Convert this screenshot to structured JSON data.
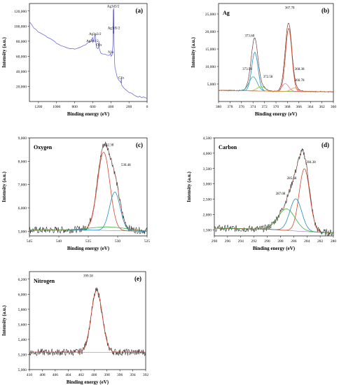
{
  "chart_data": [
    {
      "type": "line",
      "panel_label": "(a)",
      "xlabel": "Binding energy (eV)",
      "ylabel": "Intensity (a.u.)",
      "xlim": [
        1300,
        0
      ],
      "ylim": [
        0,
        130000
      ],
      "xticks": [
        1200,
        1000,
        800,
        600,
        400,
        200,
        0
      ],
      "yticks": [
        {
          "v": 20000,
          "l": "20,000"
        },
        {
          "v": 40000,
          "l": "40,000"
        },
        {
          "v": 60000,
          "l": "60,000"
        },
        {
          "v": 80000,
          "l": "80,000"
        },
        {
          "v": 100000,
          "l": "100,000"
        },
        {
          "v": 120000,
          "l": "120,000"
        }
      ],
      "annotations": [
        {
          "text": "Ag3p1/2",
          "x": 605,
          "y": 79000
        },
        {
          "text": "Ag3p3/2",
          "x": 575,
          "y": 88000
        },
        {
          "text": "O1s",
          "x": 532,
          "y": 74000
        },
        {
          "text": "Ag3d3/2",
          "x": 374,
          "y": 125000
        },
        {
          "text": "Ag3d5/2",
          "x": 368,
          "y": 96000
        },
        {
          "text": "N1s",
          "x": 400,
          "y": 64000
        },
        {
          "text": "C1s",
          "x": 285,
          "y": 30000
        }
      ],
      "series": [
        {
          "color": "#5b5bd6",
          "points": [
            [
              1300,
              105000
            ],
            [
              1290,
              104500
            ],
            [
              1270,
              101000
            ],
            [
              1250,
              97000
            ],
            [
              1230,
              96000
            ],
            [
              1220,
              94500
            ],
            [
              1200,
              92000
            ],
            [
              1180,
              91000
            ],
            [
              1150,
              89000
            ],
            [
              1120,
              87000
            ],
            [
              1100,
              85000
            ],
            [
              1080,
              84000
            ],
            [
              1050,
              82000
            ],
            [
              1020,
              79500
            ],
            [
              1000,
              77000
            ],
            [
              980,
              76000
            ],
            [
              950,
              74000
            ],
            [
              920,
              73000
            ],
            [
              900,
              72000
            ],
            [
              880,
              71000
            ],
            [
              850,
              70000
            ],
            [
              820,
              70500
            ],
            [
              800,
              69500
            ],
            [
              780,
              70000
            ],
            [
              760,
              71000
            ],
            [
              740,
              72000
            ],
            [
              720,
              73000
            ],
            [
              700,
              74500
            ],
            [
              680,
              75000
            ],
            [
              660,
              77500
            ],
            [
              640,
              79000
            ],
            [
              620,
              80000
            ],
            [
              610,
              83000
            ],
            [
              603,
              85000
            ],
            [
              598,
              80000
            ],
            [
              585,
              83000
            ],
            [
              575,
              89000
            ],
            [
              570,
              84000
            ],
            [
              560,
              72000
            ],
            [
              545,
              70000
            ],
            [
              535,
              72000
            ],
            [
              532,
              80000
            ],
            [
              528,
              70000
            ],
            [
              510,
              64000
            ],
            [
              490,
              63000
            ],
            [
              470,
              63000
            ],
            [
              450,
              62000
            ],
            [
              430,
              61000
            ],
            [
              410,
              62000
            ],
            [
              402,
              64000
            ],
            [
              398,
              60000
            ],
            [
              385,
              62000
            ],
            [
              378,
              75000
            ],
            [
              374,
              122000
            ],
            [
              371,
              90000
            ],
            [
              368,
              124000
            ],
            [
              365,
              78000
            ],
            [
              360,
              55000
            ],
            [
              355,
              45000
            ],
            [
              345,
              40000
            ],
            [
              330,
              32000
            ],
            [
              310,
              28000
            ],
            [
              295,
              26000
            ],
            [
              288,
              25000
            ],
            [
              285,
              32000
            ],
            [
              282,
              22000
            ],
            [
              270,
              20000
            ],
            [
              250,
              17000
            ],
            [
              230,
              15000
            ],
            [
              200,
              12000
            ],
            [
              170,
              11000
            ],
            [
              150,
              9000
            ],
            [
              120,
              7000
            ],
            [
              100,
              6000
            ],
            [
              80,
              7000
            ],
            [
              60,
              5000
            ],
            [
              40,
              6000
            ],
            [
              20,
              5000
            ],
            [
              0,
              4000
            ]
          ]
        }
      ]
    },
    {
      "type": "line",
      "panel_label": "(b)",
      "element_label": "Ag",
      "xlabel": "Binding energy (eV)",
      "ylabel": "Intensity (a.u.)",
      "xlim": [
        380,
        360
      ],
      "ylim": [
        0,
        28000
      ],
      "xticks": [
        380,
        378,
        376,
        374,
        372,
        370,
        368,
        366,
        364,
        362,
        360
      ],
      "yticks": [
        {
          "v": 5000,
          "l": "5,000"
        },
        {
          "v": 10000,
          "l": "10,000"
        },
        {
          "v": 15000,
          "l": "15,000"
        },
        {
          "v": 20000,
          "l": "20,000"
        },
        {
          "v": 25000,
          "l": "25,000"
        }
      ],
      "baseline": [
        [
          380,
          3200
        ],
        [
          372,
          3000
        ],
        [
          370,
          2900
        ],
        [
          360,
          2800
        ]
      ],
      "peaks": [
        {
          "name": "373.68",
          "center": 373.68,
          "amp": 11000,
          "sigma": 0.55,
          "color": "#1f8fc4"
        },
        {
          "name": "373.98",
          "center": 373.98,
          "amp": 4000,
          "sigma": 0.7,
          "color": "#2aa8a0"
        },
        {
          "name": "372.58",
          "center": 372.58,
          "amp": 1200,
          "sigma": 0.7,
          "color": "#8fbf3a"
        },
        {
          "name": "367.78",
          "center": 367.78,
          "amp": 18000,
          "sigma": 0.55,
          "color": "#d44a2a"
        },
        {
          "name": "368.38",
          "center": 368.38,
          "amp": 2200,
          "sigma": 0.6,
          "color": "#e07aa0"
        },
        {
          "name": "366.78",
          "center": 366.78,
          "amp": 1000,
          "sigma": 0.6,
          "color": "#e89a3a"
        }
      ],
      "annotations": [
        {
          "text": "367.78",
          "x": 367.6,
          "y": 26500
        },
        {
          "text": "373.68",
          "x": 374.6,
          "y": 18500
        },
        {
          "text": "373.98",
          "x": 375.0,
          "y": 9000
        },
        {
          "text": "372.58",
          "x": 371.4,
          "y": 6800
        },
        {
          "text": "368.38",
          "x": 365.9,
          "y": 9000
        },
        {
          "text": "366.78",
          "x": 365.9,
          "y": 5800
        }
      ]
    },
    {
      "type": "line",
      "panel_label": "(c)",
      "element_label": "Oxygen",
      "xlabel": "Binding energy (eV)",
      "ylabel": "Intensity (a.u.)",
      "xlim": [
        545,
        525
      ],
      "ylim": [
        4800,
        9000
      ],
      "xticks": [
        545,
        540,
        535,
        530,
        525
      ],
      "yticks": [
        {
          "v": 5000,
          "l": "5,000"
        },
        {
          "v": 6000,
          "l": "6,000"
        },
        {
          "v": 7000,
          "l": "7,000"
        },
        {
          "v": 8000,
          "l": "8,000"
        },
        {
          "v": 9000,
          "l": "9,000"
        }
      ],
      "baseline": [
        [
          545,
          5050
        ],
        [
          535,
          5050
        ],
        [
          525,
          5000
        ]
      ],
      "peaks": [
        {
          "name": "532.38",
          "center": 532.38,
          "amp": 3350,
          "sigma": 1.05,
          "color": "#d44a2a"
        },
        {
          "name": "530.48",
          "center": 530.48,
          "amp": 1650,
          "sigma": 0.9,
          "color": "#1f8fc4"
        },
        {
          "name": "broad",
          "center": 531.5,
          "amp": 150,
          "sigma": 3.0,
          "color": "#3cb043"
        }
      ],
      "annotations": [
        {
          "text": "532.38",
          "x": 531.5,
          "y": 8650
        },
        {
          "text": "530.48",
          "x": 528.6,
          "y": 7800
        }
      ]
    },
    {
      "type": "line",
      "panel_label": "(d)",
      "element_label": "Carbon",
      "xlabel": "Binding energy (eV)",
      "ylabel": "Intensity (a.u.)",
      "xlim": [
        298,
        280
      ],
      "ylim": [
        1300,
        4500
      ],
      "xticks": [
        298,
        296,
        294,
        292,
        290,
        288,
        286,
        284,
        282,
        280
      ],
      "yticks": [
        {
          "v": 1500,
          "l": "1,500"
        },
        {
          "v": 2000,
          "l": "2,000"
        },
        {
          "v": 2500,
          "l": "2,500"
        },
        {
          "v": 3000,
          "l": "3,000"
        },
        {
          "v": 3500,
          "l": "3,500"
        },
        {
          "v": 4000,
          "l": "4,000"
        },
        {
          "v": 4500,
          "l": "4,500"
        }
      ],
      "baseline": [
        [
          298,
          1550
        ],
        [
          290,
          1520
        ],
        [
          285,
          1450
        ],
        [
          280,
          1400
        ]
      ],
      "peaks": [
        {
          "name": "284.38",
          "center": 284.38,
          "amp": 2050,
          "sigma": 0.8,
          "color": "#d44a2a"
        },
        {
          "name": "285.68",
          "center": 285.68,
          "amp": 1050,
          "sigma": 0.9,
          "color": "#1f8fc4"
        },
        {
          "name": "287.08",
          "center": 287.08,
          "amp": 700,
          "sigma": 1.3,
          "color": "#3cb043"
        }
      ],
      "annotations": [
        {
          "text": "284.38",
          "x": 283.4,
          "y": 3680
        },
        {
          "text": "285.68",
          "x": 286.3,
          "y": 3150
        },
        {
          "text": "287.08",
          "x": 288.0,
          "y": 2650
        }
      ]
    },
    {
      "type": "line",
      "panel_label": "(e)",
      "element_label": "Nitrogen",
      "xlabel": "Binding energy (eV)",
      "ylabel": "Intensity (a.u.)",
      "xlim": [
        410,
        392
      ],
      "ylim": [
        5000,
        6300
      ],
      "xticks": [
        410,
        408,
        406,
        404,
        402,
        400,
        398,
        396,
        394,
        392
      ],
      "yticks": [
        {
          "v": 5000,
          "l": "5,000"
        },
        {
          "v": 5200,
          "l": "5,200"
        },
        {
          "v": 5400,
          "l": "5,400"
        },
        {
          "v": 5600,
          "l": "5,600"
        },
        {
          "v": 5800,
          "l": "5,800"
        },
        {
          "v": 6000,
          "l": "6,000"
        },
        {
          "v": 6200,
          "l": "6,200"
        }
      ],
      "baseline": [
        [
          410,
          5230
        ],
        [
          392,
          5230
        ]
      ],
      "peaks": [
        {
          "name": "399.58",
          "center": 399.58,
          "amp": 820,
          "sigma": 0.85,
          "color": "#d44a2a"
        }
      ],
      "annotations": [
        {
          "text": "399.58",
          "x": 400.9,
          "y": 6230
        }
      ]
    }
  ]
}
